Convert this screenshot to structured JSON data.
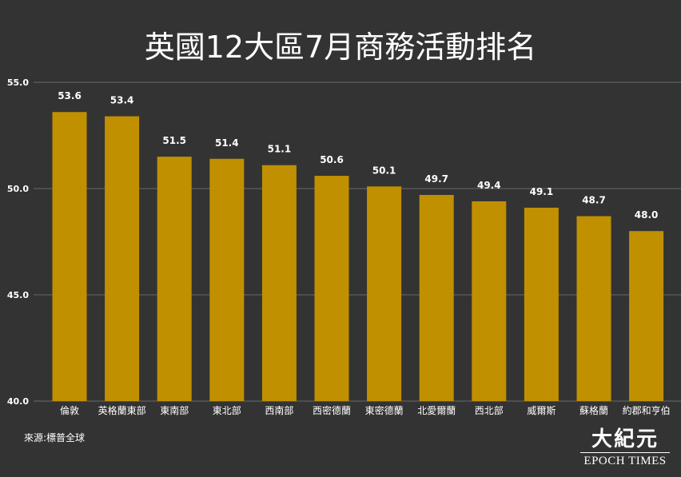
{
  "chart_data": {
    "type": "bar",
    "title": "英國12大區7月商務活動排名",
    "categories": [
      "倫敦",
      "英格蘭東部",
      "東南部",
      "東北部",
      "西南部",
      "西密德蘭",
      "東密德蘭",
      "北愛爾蘭",
      "西北部",
      "威爾斯",
      "蘇格蘭",
      "約郡和亨伯"
    ],
    "values": [
      53.6,
      53.4,
      51.5,
      51.4,
      51.1,
      50.6,
      50.1,
      49.7,
      49.4,
      49.1,
      48.7,
      48.0
    ],
    "value_labels": [
      "53.6",
      "53.4",
      "51.5",
      "51.4",
      "51.1",
      "50.6",
      "50.1",
      "49.7",
      "49.4",
      "49.1",
      "48.7",
      "48.0"
    ],
    "yticks": [
      "40.0",
      "45.0",
      "50.0",
      "55.0"
    ],
    "ylim": [
      40,
      55
    ],
    "grid": true,
    "bar_color": "#c09000",
    "xlabel": "",
    "ylabel": ""
  },
  "source": "來源:標普全球",
  "logo": {
    "zh": "大紀元",
    "en": "EPOCH TIMES"
  },
  "colors": {
    "background": "#333333",
    "grid": "#6a6a6a",
    "text": "#ffffff"
  }
}
